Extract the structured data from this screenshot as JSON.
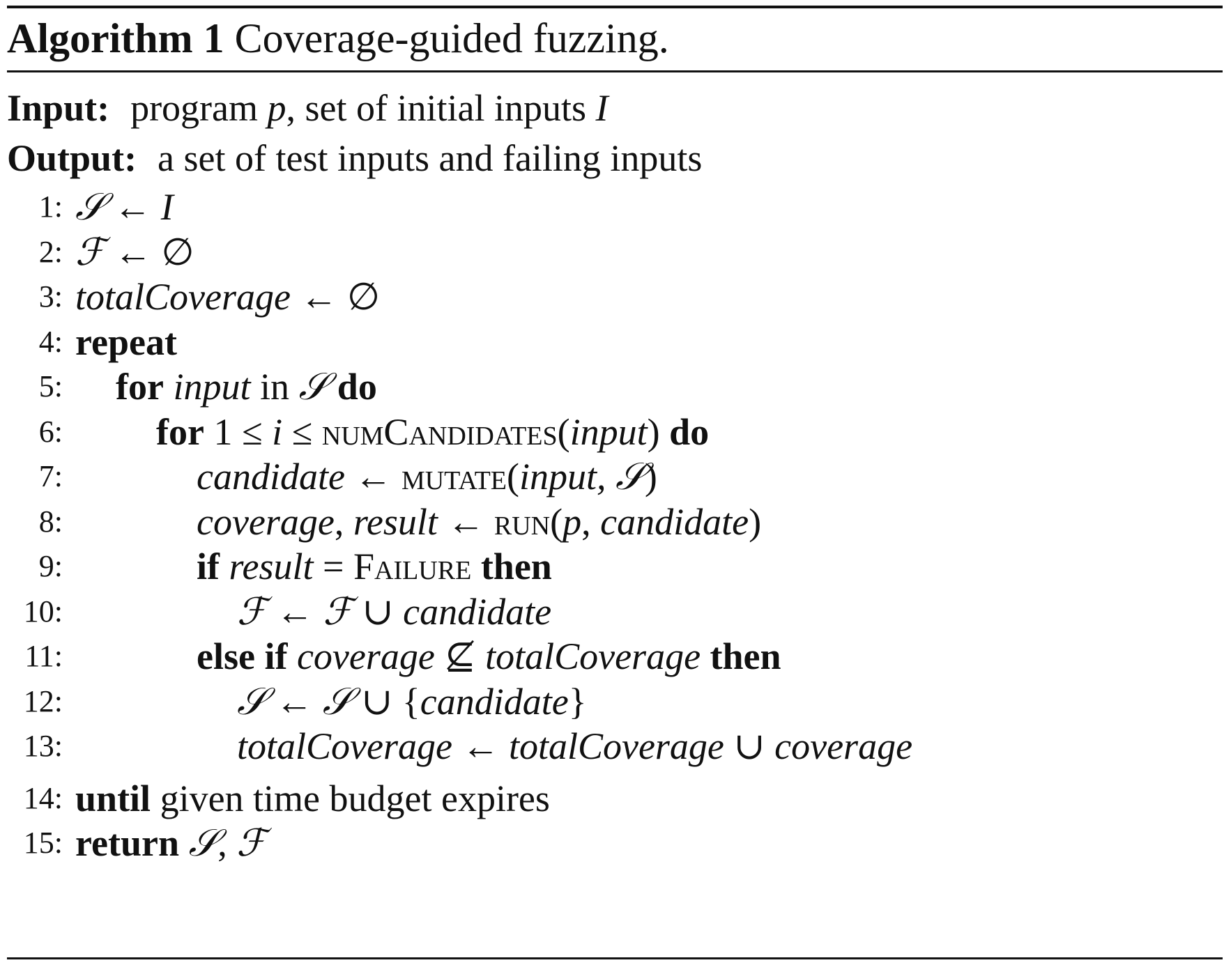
{
  "caption": {
    "label": "Algorithm 1",
    "text": "Coverage-guided fuzzing."
  },
  "input": {
    "keyword": "Input:",
    "text_a": "program ",
    "var_p": "p",
    "text_b": ", set of initial inputs ",
    "var_I": "I"
  },
  "output": {
    "keyword": "Output:",
    "text": "a set of test inputs and failing inputs"
  },
  "lines": [
    {
      "num": "1:",
      "t1": "𝒮",
      "t2": " ← ",
      "t3": "I"
    },
    {
      "num": "2:",
      "t1": "ℱ",
      "t2": " ← ∅"
    },
    {
      "num": "3:",
      "t1": "totalCoverage",
      "t2": " ← ∅"
    },
    {
      "num": "4:",
      "t1": "repeat"
    },
    {
      "num": "5:",
      "t1": "for",
      "t2": " ",
      "t3": "input",
      "t4": " in ",
      "t5": "𝒮",
      "t6": " ",
      "t7": "do"
    },
    {
      "num": "6:",
      "t1": "for",
      "t2": " 1 ≤ ",
      "t3": "i",
      "t4": " ≤ ",
      "t5": "numCandidates",
      "t6": "(",
      "t7": "input",
      "t8": ") ",
      "t9": "do"
    },
    {
      "num": "7:",
      "t1": "candidate",
      "t2": " ← ",
      "t3": "mutate",
      "t4": "(",
      "t5": "input, ",
      "t6": "𝒮",
      "t7": ")"
    },
    {
      "num": "8:",
      "t1": "coverage",
      "t2": ", ",
      "t3": "result",
      "t4": " ← ",
      "t5": "run",
      "t6": "(",
      "t7": "p",
      "t8": ", ",
      "t9": "candidate",
      "t10": ")"
    },
    {
      "num": "9:",
      "t1": "if",
      "t2": " ",
      "t3": "result",
      "t4": " = ",
      "t5": "Failure",
      "t6": " ",
      "t7": "then"
    },
    {
      "num": "10:",
      "t1": "ℱ",
      "t2": " ← ",
      "t3": "ℱ",
      "t4": " ∪ ",
      "t5": "candidate"
    },
    {
      "num": "11:",
      "t1": "else if",
      "t2": " ",
      "t3": "coverage",
      "t4": " ⊈ ",
      "t5": "totalCoverage",
      "t6": " ",
      "t7": "then"
    },
    {
      "num": "12:",
      "t1": "𝒮",
      "t2": " ← ",
      "t3": "𝒮",
      "t4": " ∪ {",
      "t5": "candidate",
      "t6": "}"
    },
    {
      "num": "13:",
      "t1": "totalCoverage",
      "t2": " ← ",
      "t3": "totalCoverage",
      "t4": " ∪ ",
      "t5": "coverage"
    },
    {
      "num": "14:",
      "t1": "until",
      "t2": "  given time budget expires"
    },
    {
      "num": "15:",
      "t1": "return",
      "t2": " ",
      "t3": "𝒮",
      "t4": ", ",
      "t5": "ℱ"
    }
  ]
}
